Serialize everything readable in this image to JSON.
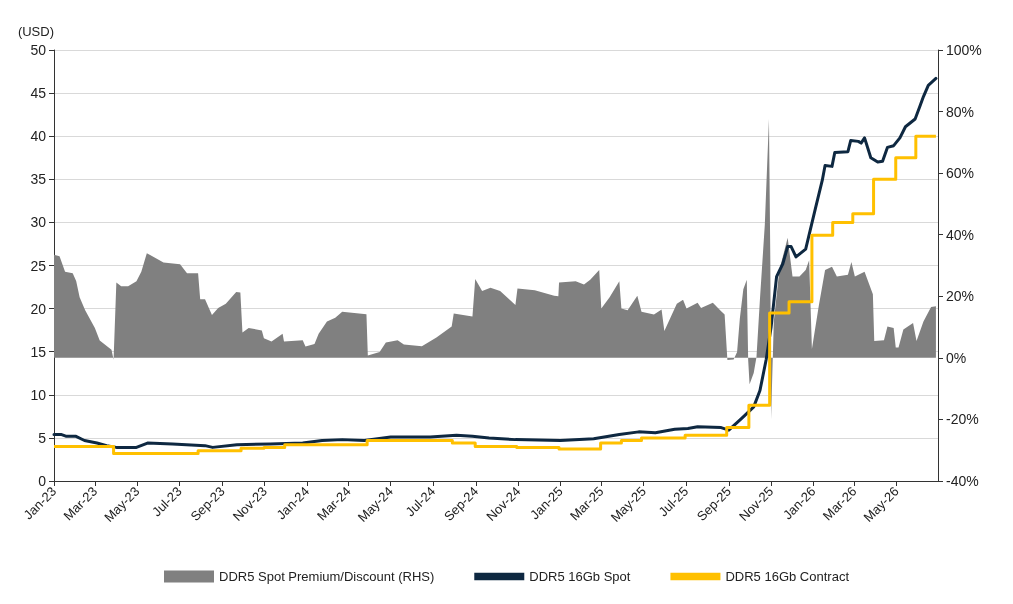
{
  "chart_data": {
    "type": "line",
    "ylabel": "(USD)",
    "legend": "bottom",
    "grid": "y",
    "marker": "none",
    "xlim": [
      "2023-01-01",
      "2026-06-30"
    ],
    "xticks": [
      {
        "value": "2023-01-01",
        "label": "Jan-23"
      },
      {
        "value": "2023-03-01",
        "label": "Mar-23"
      },
      {
        "value": "2023-05-01",
        "label": "May-23"
      },
      {
        "value": "2023-07-01",
        "label": "Jul-23"
      },
      {
        "value": "2023-09-01",
        "label": "Sep-23"
      },
      {
        "value": "2023-11-01",
        "label": "Nov-23"
      },
      {
        "value": "2024-01-01",
        "label": "Jan-24"
      },
      {
        "value": "2024-03-01",
        "label": "Mar-24"
      },
      {
        "value": "2024-05-01",
        "label": "May-24"
      },
      {
        "value": "2024-07-01",
        "label": "Jul-24"
      },
      {
        "value": "2024-09-01",
        "label": "Sep-24"
      },
      {
        "value": "2024-11-01",
        "label": "Nov-24"
      },
      {
        "value": "2025-01-01",
        "label": "Jan-25"
      },
      {
        "value": "2025-03-01",
        "label": "Mar-25"
      },
      {
        "value": "2025-05-01",
        "label": "May-25"
      },
      {
        "value": "2025-07-01",
        "label": "Jul-25"
      },
      {
        "value": "2025-09-01",
        "label": "Sep-25"
      },
      {
        "value": "2025-11-01",
        "label": "Nov-25"
      },
      {
        "value": "2026-01-01",
        "label": "Jan-26"
      },
      {
        "value": "2026-03-01",
        "label": "Mar-26"
      },
      {
        "value": "2026-05-01",
        "label": "May-26"
      }
    ],
    "ylim": [
      0,
      50
    ],
    "yticks": [
      0,
      5,
      10,
      15,
      20,
      25,
      30,
      35,
      40,
      45,
      50
    ],
    "y2lim": [
      -40,
      100
    ],
    "y2ticks": [
      {
        "value": -40,
        "label": "-40%"
      },
      {
        "value": -20,
        "label": "-20%"
      },
      {
        "value": 0,
        "label": "0%"
      },
      {
        "value": 20,
        "label": "20%"
      },
      {
        "value": 40,
        "label": "40%"
      },
      {
        "value": 60,
        "label": "60%"
      },
      {
        "value": 80,
        "label": "80%"
      },
      {
        "value": 100,
        "label": "100%"
      }
    ],
    "series": [
      {
        "name": "DDR5 Spot Premium/Discount (RHS)",
        "type": "area",
        "axis": "y2",
        "color": "#808080",
        "x": [
          "2023-01-01",
          "2023-01-09",
          "2023-01-17",
          "2023-01-28",
          "2023-02-02",
          "2023-02-07",
          "2023-02-15",
          "2023-03-01",
          "2023-03-08",
          "2023-03-25",
          "2023-03-28",
          "2023-04-01",
          "2023-04-08",
          "2023-04-18",
          "2023-04-30",
          "2023-05-07",
          "2023-05-15",
          "2023-06-01",
          "2023-06-08",
          "2023-07-02",
          "2023-07-12",
          "2023-07-28",
          "2023-07-31",
          "2023-08-07",
          "2023-08-17",
          "2023-08-26",
          "2023-09-06",
          "2023-09-21",
          "2023-09-27",
          "2023-09-30",
          "2023-10-09",
          "2023-10-28",
          "2023-10-31",
          "2023-11-11",
          "2023-11-27",
          "2023-11-29",
          "2023-12-26",
          "2023-12-30",
          "2024-01-12",
          "2024-01-18",
          "2024-01-30",
          "2024-02-11",
          "2024-02-21",
          "2024-03-27",
          "2024-03-29",
          "2024-04-15",
          "2024-04-24",
          "2024-05-11",
          "2024-05-20",
          "2024-06-15",
          "2024-07-06",
          "2024-07-28",
          "2024-07-31",
          "2024-08-27",
          "2024-08-31",
          "2024-09-10",
          "2024-09-22",
          "2024-10-06",
          "2024-10-21",
          "2024-10-28",
          "2024-10-31",
          "2024-11-25",
          "2024-12-23",
          "2024-12-29",
          "2024-12-30",
          "2025-01-23",
          "2025-02-04",
          "2025-02-13",
          "2025-02-26",
          "2025-03-01",
          "2025-03-13",
          "2025-03-27",
          "2025-03-30",
          "2025-04-08",
          "2025-04-22",
          "2025-04-28",
          "2025-05-16",
          "2025-05-27",
          "2025-05-31",
          "2025-06-18",
          "2025-06-27",
          "2025-07-02",
          "2025-07-18",
          "2025-07-23",
          "2025-08-09",
          "2025-08-21",
          "2025-08-26",
          "2025-08-30",
          "2025-09-08",
          "2025-09-13",
          "2025-09-17",
          "2025-09-22",
          "2025-09-27",
          "2025-09-29",
          "2025-10-01",
          "2025-10-07",
          "2025-10-11",
          "2025-10-16",
          "2025-10-23",
          "2025-10-29",
          "2025-10-31",
          "2025-11-01",
          "2025-11-05",
          "2025-11-13",
          "2025-11-25",
          "2025-12-02",
          "2025-12-12",
          "2025-12-21",
          "2025-12-26",
          "2025-12-30",
          "2026-01-09",
          "2026-01-18",
          "2026-01-28",
          "2026-02-04",
          "2026-02-20",
          "2026-02-25",
          "2026-03-02",
          "2026-03-16",
          "2026-03-28",
          "2026-03-30",
          "2026-04-13",
          "2026-04-18",
          "2026-04-27",
          "2026-04-30",
          "2026-05-04",
          "2026-05-11",
          "2026-05-25",
          "2026-05-30",
          "2026-06-09",
          "2026-06-20",
          "2026-06-27"
        ],
        "values": [
          33.5,
          33,
          28,
          27.5,
          25,
          19.7,
          15.5,
          9.7,
          5.6,
          2.6,
          -0.6,
          24.5,
          23.3,
          23.3,
          24.9,
          28,
          34,
          31.9,
          31,
          30.4,
          27.5,
          27.5,
          19,
          19,
          13.9,
          16.2,
          17.6,
          21.4,
          21.2,
          8.2,
          9.7,
          8.9,
          6.4,
          5.3,
          7.8,
          5.3,
          5.7,
          3.7,
          4.5,
          7.8,
          11.8,
          13,
          15,
          14.2,
          0.8,
          1.9,
          5,
          5.7,
          4.3,
          3.8,
          6.6,
          10.2,
          14.4,
          13.4,
          25.6,
          21.7,
          22.8,
          21.7,
          18.6,
          17.2,
          22.5,
          22,
          20.2,
          20,
          24.5,
          24.9,
          23.8,
          25.4,
          28.5,
          16,
          19.7,
          24.9,
          16,
          15.5,
          20.2,
          15,
          14.1,
          15.7,
          8.7,
          17.6,
          18.9,
          16,
          17.9,
          16.2,
          17.9,
          15.1,
          14.1,
          -0.7,
          -0.5,
          1.9,
          12.9,
          22.3,
          25.4,
          -0.7,
          -8.6,
          -4.9,
          0.3,
          19.1,
          43.2,
          77.6,
          30.6,
          -20,
          11.8,
          28.5,
          39,
          26.4,
          26.4,
          28.5,
          31.7,
          2.9,
          17,
          28.5,
          29.6,
          26.4,
          27,
          31.1,
          26.4,
          28,
          20.7,
          5.5,
          5.7,
          10.2,
          9.7,
          3.4,
          3.4,
          9.2,
          11.3,
          5.5,
          11.8,
          16.5,
          16.8
        ]
      },
      {
        "name": "DDR5 16Gb Spot",
        "type": "line",
        "color": "#0e2841",
        "x": [
          "2023-01-01",
          "2023-01-11",
          "2023-01-18",
          "2023-02-01",
          "2023-02-14",
          "2023-03-04",
          "2023-03-18",
          "2023-04-01",
          "2023-04-30",
          "2023-05-16",
          "2023-06-21",
          "2023-08-07",
          "2023-08-18",
          "2023-09-22",
          "2023-11-09",
          "2023-12-26",
          "2024-01-23",
          "2024-02-21",
          "2024-03-24",
          "2024-05-01",
          "2024-06-27",
          "2024-08-04",
          "2024-08-27",
          "2024-09-20",
          "2024-10-28",
          "2025-01-01",
          "2025-02-18",
          "2025-03-27",
          "2025-04-24",
          "2025-05-18",
          "2025-06-15",
          "2025-07-04",
          "2025-07-18",
          "2025-08-21",
          "2025-09-01",
          "2025-09-20",
          "2025-10-07",
          "2025-10-16",
          "2025-10-25",
          "2025-11-01",
          "2025-11-09",
          "2025-11-18",
          "2025-11-25",
          "2025-11-30",
          "2025-12-07",
          "2025-12-21",
          "2026-01-04",
          "2026-01-14",
          "2026-01-18",
          "2026-01-28",
          "2026-02-01",
          "2026-02-20",
          "2026-02-24",
          "2026-03-07",
          "2026-03-11",
          "2026-03-16",
          "2026-03-25",
          "2026-04-04",
          "2026-04-11",
          "2026-04-18",
          "2026-04-27",
          "2026-05-06",
          "2026-05-14",
          "2026-05-28",
          "2026-06-04",
          "2026-06-09",
          "2026-06-16",
          "2026-06-27"
        ],
        "values": [
          5.4,
          5.4,
          5.2,
          5.2,
          4.7,
          4.4,
          4.1,
          3.9,
          3.9,
          4.4,
          4.3,
          4.1,
          3.9,
          4.2,
          4.3,
          4.4,
          4.7,
          4.8,
          4.7,
          5.1,
          5.1,
          5.3,
          5.2,
          5.0,
          4.8,
          4.7,
          4.9,
          5.4,
          5.7,
          5.6,
          6.0,
          6.1,
          6.3,
          6.2,
          5.9,
          7.3,
          8.6,
          10.5,
          14.1,
          17.8,
          23.7,
          25.2,
          27.2,
          27.2,
          26.0,
          26.9,
          31.6,
          34.9,
          36.6,
          36.5,
          38.1,
          38.2,
          39.5,
          39.4,
          39.2,
          39.8,
          37.5,
          37.0,
          37.1,
          38.7,
          38.9,
          39.8,
          41.1,
          42.0,
          43.5,
          44.6,
          45.9,
          46.7
        ]
      },
      {
        "name": "DDR5 16Gb Contract",
        "type": "step",
        "color": "#ffc000",
        "x": [
          "2023-01-01",
          "2023-03-28",
          "2023-07-28",
          "2023-09-28",
          "2023-10-31",
          "2023-11-30",
          "2024-03-28",
          "2024-07-29",
          "2024-08-31",
          "2024-10-30",
          "2024-12-30",
          "2025-02-28",
          "2025-03-30",
          "2025-04-28",
          "2025-06-30",
          "2025-08-29",
          "2025-09-30",
          "2025-10-30",
          "2025-11-27",
          "2025-12-30",
          "2026-01-29",
          "2026-02-27",
          "2026-03-29",
          "2026-04-30",
          "2026-05-29",
          "2026-06-27"
        ],
        "values": [
          4.0,
          3.2,
          3.5,
          3.8,
          3.9,
          4.2,
          4.7,
          4.4,
          4.0,
          3.9,
          3.7,
          4.4,
          4.7,
          5.0,
          5.3,
          6.2,
          8.8,
          19.5,
          20.8,
          28.5,
          30.0,
          31.0,
          35.0,
          37.5,
          40.0,
          40.0
        ]
      }
    ]
  }
}
